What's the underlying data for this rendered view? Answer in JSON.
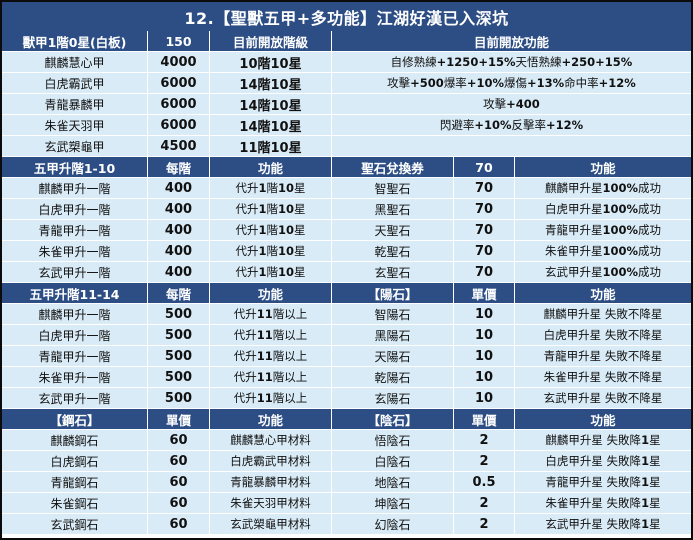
{
  "title": "12.【聖獸五甲+多功能】江湖好漢已入深坑",
  "section1": {
    "header": [
      "獸甲1階0星(白板)",
      "150",
      "目前開放階級",
      "目前開放功能"
    ],
    "rows": [
      [
        "麒麟慧心甲",
        "4000",
        "10階10星",
        "自修熟練+1250+15% 天悟熟練+250+15%"
      ],
      [
        "白虎霸武甲",
        "6000",
        "14階10星",
        "攻擊+500 爆率+10% 爆傷+13% 命中率+12%"
      ],
      [
        "青龍暴麟甲",
        "6000",
        "14階10星",
        "攻擊+400"
      ],
      [
        "朱雀天羽甲",
        "6000",
        "14階10星",
        "閃避率+10% 反擊率+12%"
      ],
      [
        "玄武槊龜甲",
        "4500",
        "11階10星",
        ""
      ]
    ]
  },
  "section2": {
    "header": [
      "五甲升階1-10",
      "每階",
      "功能",
      "聖石兌換券",
      "70",
      "功能"
    ],
    "rows": [
      [
        "麒麟甲升一階",
        "400",
        "代升 1階10星",
        "智聖石",
        "70",
        "麒麟甲升星 100%成功"
      ],
      [
        "白虎甲升一階",
        "400",
        "代升 1階10星",
        "黑聖石",
        "70",
        "白虎甲升星 100%成功"
      ],
      [
        "青龍甲升一階",
        "400",
        "代升 1階10星",
        "天聖石",
        "70",
        "青龍甲升星 100%成功"
      ],
      [
        "朱雀甲升一階",
        "400",
        "代升 1階10星",
        "乾聖石",
        "70",
        "朱雀甲升星 100%成功"
      ],
      [
        "玄武甲升一階",
        "400",
        "代升 1階10星",
        "玄聖石",
        "70",
        "玄武甲升星 100%成功"
      ]
    ]
  },
  "section3": {
    "header": [
      "五甲升階11-14",
      "每階",
      "功能",
      "【陽石】",
      "單價",
      "功能"
    ],
    "rows": [
      [
        "麒麟甲升一階",
        "500",
        "代升 11階以上",
        "智陽石",
        "10",
        "麒麟甲升星 失敗不降星"
      ],
      [
        "白虎甲升一階",
        "500",
        "代升 11階以上",
        "黑陽石",
        "10",
        "白虎甲升星 失敗不降星"
      ],
      [
        "青龍甲升一階",
        "500",
        "代升 11階以上",
        "天陽石",
        "10",
        "青龍甲升星 失敗不降星"
      ],
      [
        "朱雀甲升一階",
        "500",
        "代升 11階以上",
        "乾陽石",
        "10",
        "朱雀甲升星 失敗不降星"
      ],
      [
        "玄武甲升一階",
        "500",
        "代升 11階以上",
        "玄陽石",
        "10",
        "玄武甲升星 失敗不降星"
      ]
    ]
  },
  "section4": {
    "header": [
      "【鋼石】",
      "單價",
      "功能",
      "【陰石】",
      "單價",
      "功能"
    ],
    "rows": [
      [
        "麒麟鋼石",
        "60",
        "麒麟慧心甲材料",
        "悟陰石",
        "2",
        "麒麟甲升星 失敗降1星"
      ],
      [
        "白虎鋼石",
        "60",
        "白虎霸武甲材料",
        "白陰石",
        "2",
        "白虎甲升星 失敗降1星"
      ],
      [
        "青龍鋼石",
        "60",
        "青龍暴麟甲材料",
        "地陰石",
        "0.5",
        "青龍甲升星 失敗降1星"
      ],
      [
        "朱雀鋼石",
        "60",
        "朱雀天羽甲材料",
        "坤陰石",
        "2",
        "朱雀甲升星 失敗降1星"
      ],
      [
        "玄武鋼石",
        "60",
        "玄武槊龜甲材料",
        "幻陰石",
        "2",
        "玄武甲升星 失敗降1星"
      ]
    ]
  }
}
